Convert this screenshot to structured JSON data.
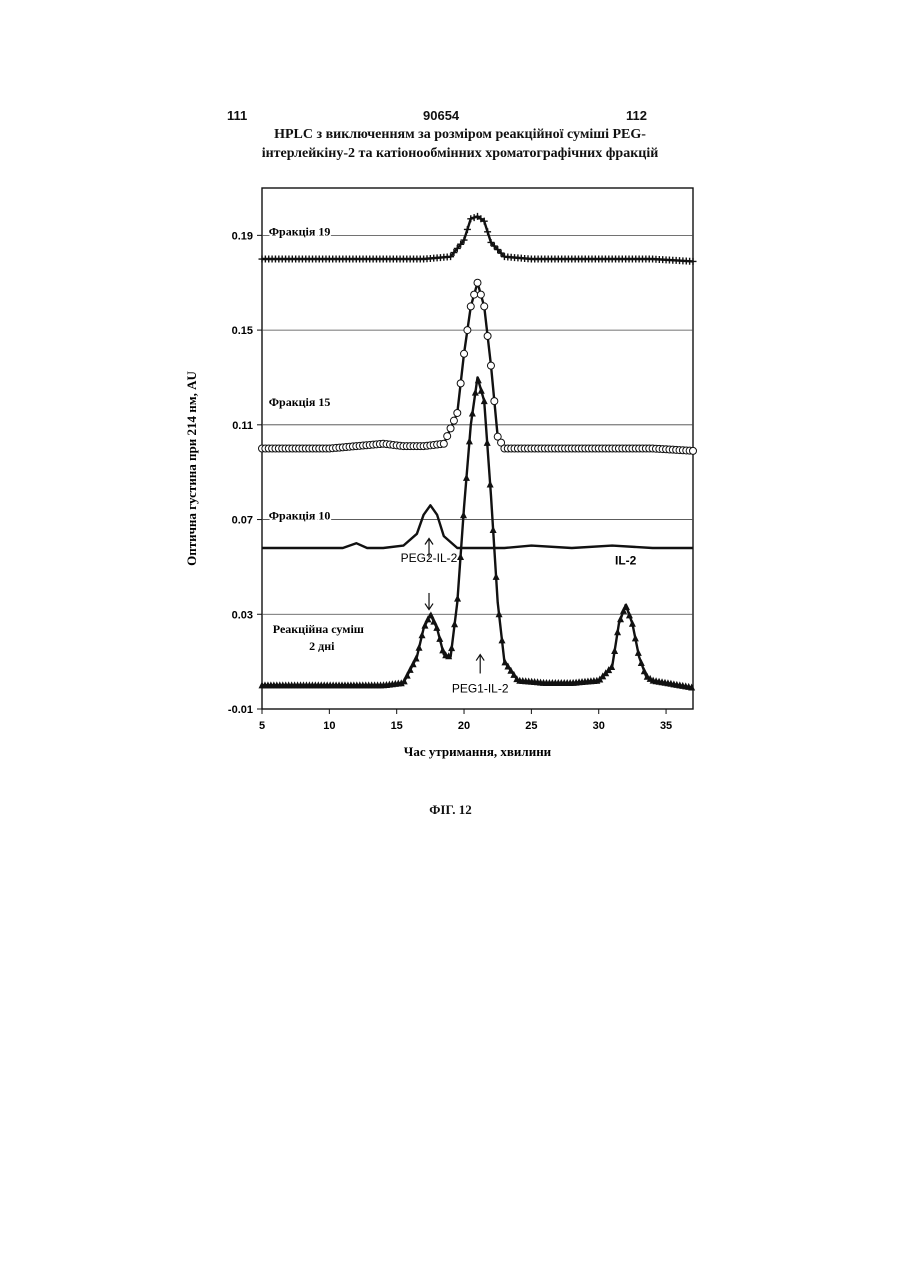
{
  "header": {
    "page_left": "111",
    "doc_number": "90654",
    "page_right": "112"
  },
  "title_lines": [
    "HPLC з виключенням за розміром реакційної суміші PEG-",
    "інтерлейкіну-2 та катіонообмінних хроматографічних фракцій"
  ],
  "figure_caption": "ФІГ. 12",
  "chart_data": {
    "type": "line",
    "title": "HPLC з виключенням за розміром реакційної суміші PEG-інтерлейкіну-2 та катіонообмінних хроматографічних фракцій",
    "xlabel": "Час утримання, хвилини",
    "ylabel": "Оптична густина при 214 нм, AU",
    "xlim": [
      5,
      37
    ],
    "ylim": [
      -0.01,
      0.21
    ],
    "x_ticks": [
      5,
      10,
      15,
      20,
      25,
      30,
      35
    ],
    "y_ticks": [
      -0.01,
      0.03,
      0.07,
      0.11,
      0.15,
      0.19
    ],
    "y_tick_labels": [
      "-0.01",
      "0.03",
      "0.07",
      "0.11",
      "0.15",
      "0.19"
    ],
    "grid": "horizontal",
    "series": [
      {
        "name": "Реакційна суміш 2 дні",
        "marker": "triangle",
        "x": [
          5,
          10,
          14,
          15.5,
          16.5,
          17,
          17.5,
          18,
          18.5,
          19,
          19.5,
          20,
          20.5,
          21,
          21.5,
          22,
          22.5,
          23,
          24,
          26,
          28,
          30,
          31,
          31.5,
          32,
          32.5,
          33,
          33.5,
          34,
          35,
          37
        ],
        "y": [
          0.0,
          0.0,
          0.0,
          0.001,
          0.012,
          0.024,
          0.03,
          0.024,
          0.013,
          0.012,
          0.035,
          0.075,
          0.11,
          0.13,
          0.12,
          0.08,
          0.035,
          0.01,
          0.002,
          0.001,
          0.001,
          0.002,
          0.008,
          0.026,
          0.034,
          0.026,
          0.012,
          0.004,
          0.002,
          0.001,
          -0.001
        ]
      },
      {
        "name": "Фракція 10",
        "marker": "none",
        "x": [
          5,
          8,
          11,
          12,
          12.8,
          14,
          15.5,
          16.5,
          17,
          17.5,
          18,
          18.5,
          19.5,
          21,
          23,
          25,
          28,
          31,
          34,
          37
        ],
        "y": [
          0.058,
          0.058,
          0.058,
          0.06,
          0.058,
          0.058,
          0.059,
          0.064,
          0.072,
          0.076,
          0.072,
          0.063,
          0.058,
          0.058,
          0.058,
          0.059,
          0.058,
          0.059,
          0.058,
          0.058
        ]
      },
      {
        "name": "Фракція 15",
        "marker": "circle",
        "x": [
          5,
          8,
          10,
          12,
          14,
          15.5,
          17,
          18.5,
          19.5,
          20,
          20.5,
          21,
          21.5,
          22,
          22.5,
          23,
          24,
          26,
          28,
          30,
          32,
          34,
          37
        ],
        "y": [
          0.1,
          0.1,
          0.1,
          0.101,
          0.102,
          0.101,
          0.101,
          0.102,
          0.115,
          0.14,
          0.16,
          0.17,
          0.16,
          0.135,
          0.105,
          0.1,
          0.1,
          0.1,
          0.1,
          0.1,
          0.1,
          0.1,
          0.099
        ]
      },
      {
        "name": "Фракція 19",
        "marker": "plus",
        "x": [
          5,
          8,
          11,
          14,
          17,
          19,
          20,
          20.5,
          21,
          21.5,
          22,
          23,
          25,
          28,
          31,
          34,
          37
        ],
        "y": [
          0.18,
          0.18,
          0.18,
          0.18,
          0.18,
          0.181,
          0.188,
          0.197,
          0.198,
          0.196,
          0.187,
          0.181,
          0.18,
          0.18,
          0.18,
          0.18,
          0.179
        ]
      }
    ],
    "annotations": [
      {
        "text": "Фракція 19",
        "x": 5.5,
        "y": 0.19
      },
      {
        "text": "Фракція 15",
        "x": 5.5,
        "y": 0.118
      },
      {
        "text": "Фракція 10",
        "x": 5.5,
        "y": 0.07
      },
      {
        "text": "PEG2-IL-2",
        "x": 17.4,
        "y": 0.052
      },
      {
        "text": "IL-2",
        "x": 32.0,
        "y": 0.051
      },
      {
        "text": "Реакційна суміш",
        "x": 5.8,
        "y": 0.022
      },
      {
        "text": "2 дні",
        "x": 8.5,
        "y": 0.015
      },
      {
        "text": "PEG1-IL-2",
        "x": 21.2,
        "y": -0.003
      }
    ]
  }
}
